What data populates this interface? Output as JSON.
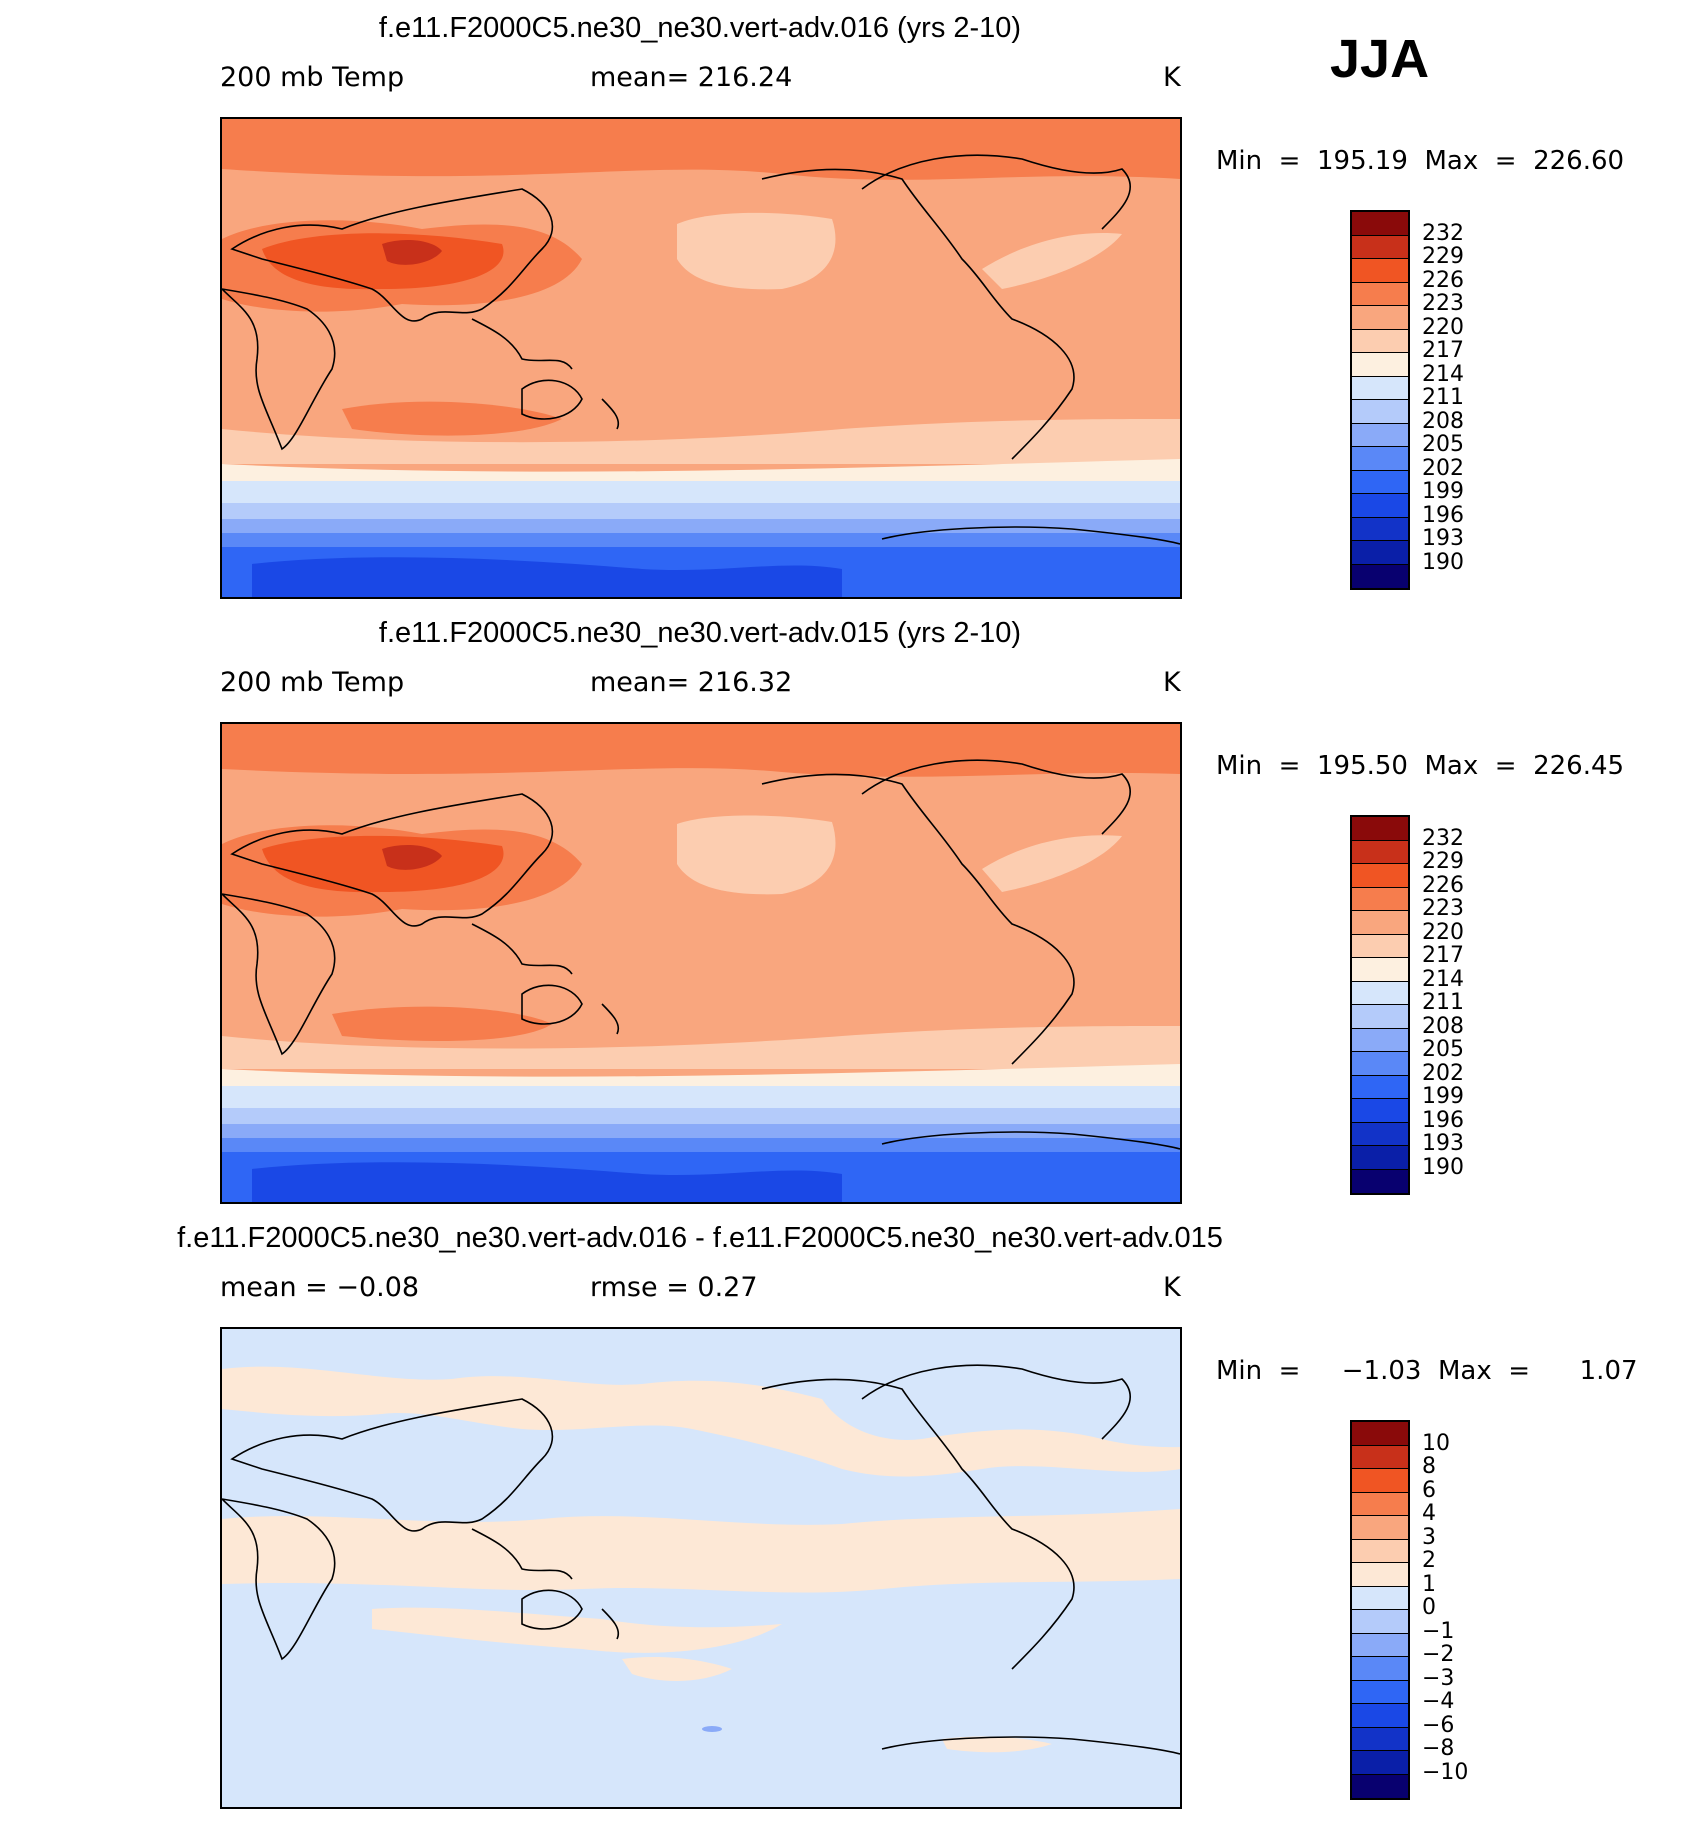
{
  "season": "JJA",
  "colors": {
    "abs_scale": [
      "#08006f",
      "#0a1fa8",
      "#1233c8",
      "#1a48e6",
      "#2f66f5",
      "#5a88f7",
      "#8aaaf8",
      "#b4cbfa",
      "#d6e6fb",
      "#fdf0e0",
      "#fccdb0",
      "#f9a67e",
      "#f67d4d",
      "#f05523",
      "#c8301a",
      "#8a0a0a"
    ],
    "diff_scale": [
      "#08006f",
      "#0a1fa8",
      "#1233c8",
      "#1a48e6",
      "#2f66f5",
      "#5a88f7",
      "#8aaaf8",
      "#b4cbfa",
      "#d6e6fb",
      "#fde8d6",
      "#fccdb0",
      "#f9a67e",
      "#f67d4d",
      "#f05523",
      "#c8301a",
      "#8a0a0a"
    ],
    "coast": "#000000"
  },
  "panels": [
    {
      "title": "f.e11.F2000C5.ne30_ne30.vert-adv.016 (yrs 2-10)",
      "left_label": "200 mb Temp",
      "mid_label": "mean=  216.24",
      "unit": "K",
      "minmax": "Min  =  195.19  Max  =  226.60",
      "colorbar_labels": [
        "232",
        "229",
        "226",
        "223",
        "220",
        "217",
        "214",
        "211",
        "208",
        "205",
        "202",
        "199",
        "196",
        "193",
        "190"
      ],
      "scale": "abs"
    },
    {
      "title": "f.e11.F2000C5.ne30_ne30.vert-adv.015 (yrs 2-10)",
      "left_label": "200 mb Temp",
      "mid_label": "mean=  216.32",
      "unit": "K",
      "minmax": "Min  =  195.50  Max  =  226.45",
      "colorbar_labels": [
        "232",
        "229",
        "226",
        "223",
        "220",
        "217",
        "214",
        "211",
        "208",
        "205",
        "202",
        "199",
        "196",
        "193",
        "190"
      ],
      "scale": "abs"
    },
    {
      "title": "f.e11.F2000C5.ne30_ne30.vert-adv.016 - f.e11.F2000C5.ne30_ne30.vert-adv.015",
      "left_label": "mean  =     −0.08",
      "mid_label": "rmse  =      0.27",
      "unit": "K",
      "minmax": "Min  =     −1.03  Max  =      1.07",
      "colorbar_labels": [
        "10",
        "8",
        "6",
        "4",
        "3",
        "2",
        "1",
        "0",
        "−1",
        "−2",
        "−3",
        "−4",
        "−6",
        "−8",
        "−10"
      ],
      "scale": "diff"
    }
  ]
}
